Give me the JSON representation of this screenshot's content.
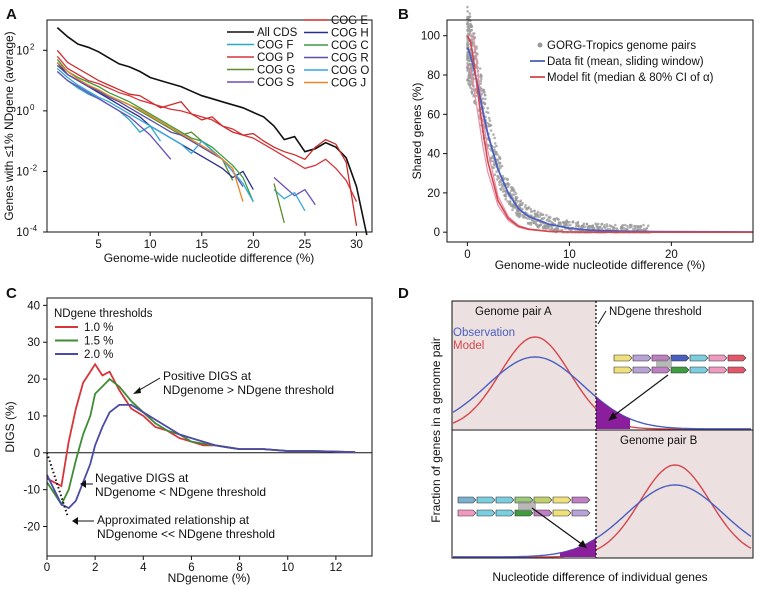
{
  "colors": {
    "all": "#111111",
    "F": "#2aa9c2",
    "P": "#d6353a",
    "G": "#5a8f2c",
    "S": "#6b4fb7",
    "E": "#cf2b2b",
    "H": "#2b2f8c",
    "C": "#3f9c40",
    "R": "#5b4fa6",
    "O": "#35a8dc",
    "J": "#e8862a",
    "gray": "#9a9a9a",
    "obs": "#4a5fbf",
    "model": "#d6474d",
    "shade": "#ece0e0",
    "purple": "#8b1e9c"
  },
  "chart_data": [
    {
      "panel": "A",
      "type": "line",
      "xlabel": "Genome-wide nucleotide difference (%)",
      "ylabel": "Genes with ≤1% NDgene (average)",
      "xlim": [
        0,
        31.5
      ],
      "ylim_log10": [
        -4,
        3
      ],
      "xticks": [
        5,
        10,
        15,
        20,
        25,
        30
      ],
      "yticks": [
        {
          "label": "10",
          "exp": "2",
          "log": 2
        },
        {
          "label": "10",
          "exp": "0",
          "log": 0
        },
        {
          "label": "10",
          "exp": "-2",
          "log": -2
        },
        {
          "label": "10",
          "exp": "-4",
          "log": -4
        }
      ],
      "series": [
        {
          "name": "All CDS",
          "key": "all",
          "x": [
            1,
            2,
            3,
            4,
            5,
            6,
            7,
            8,
            9,
            10,
            11,
            12,
            13,
            14,
            15,
            16,
            17,
            18,
            19,
            20,
            21,
            22,
            23,
            24,
            25,
            26,
            27,
            28,
            29,
            30,
            31
          ],
          "logy": [
            2.75,
            2.45,
            2.2,
            2.1,
            1.95,
            1.75,
            1.55,
            1.45,
            1.3,
            1.1,
            1.0,
            0.9,
            0.8,
            0.65,
            0.5,
            0.4,
            0.3,
            0.2,
            0.1,
            -0.05,
            -0.2,
            -0.5,
            -0.95,
            -0.85,
            -1.35,
            -1.25,
            -1.05,
            -1.2,
            -1.55,
            -2.5,
            -4.1
          ]
        },
        {
          "name": "COG F",
          "key": "F",
          "x": [
            1,
            2,
            3,
            4,
            5,
            6,
            7,
            8,
            9,
            10,
            11
          ],
          "logy": [
            1.3,
            1.0,
            0.75,
            0.55,
            0.4,
            0.2,
            0.0,
            -0.3,
            -0.7,
            -0.5,
            -1.0
          ]
        },
        {
          "name": "COG P",
          "key": "P",
          "x": [
            1,
            2,
            3,
            4,
            5,
            6,
            7,
            8,
            9,
            10,
            11,
            12,
            13,
            14,
            15,
            16,
            17,
            18,
            19,
            20,
            21,
            22,
            23,
            24,
            25,
            26,
            27,
            28,
            29,
            30
          ],
          "logy": [
            1.8,
            1.4,
            1.2,
            1.0,
            0.9,
            0.75,
            0.6,
            0.5,
            0.35,
            0.25,
            0.15,
            0.05,
            0.0,
            -0.1,
            -0.2,
            -0.3,
            -0.5,
            -0.6,
            -0.8,
            -0.9,
            -1.1,
            -1.3,
            -1.5,
            -1.7,
            -1.9,
            -1.8,
            -1.6,
            -1.9,
            -2.3,
            -3.0
          ]
        },
        {
          "name": "COG G",
          "key": "G",
          "x": [
            1,
            2,
            3,
            4,
            5,
            6,
            7,
            8,
            9,
            10,
            11,
            12,
            13,
            14,
            15,
            16,
            17,
            18
          ],
          "logy": [
            1.5,
            1.2,
            1.0,
            0.85,
            0.65,
            0.5,
            0.35,
            0.2,
            0.0,
            -0.2,
            -0.4,
            -0.6,
            -0.8,
            -0.7,
            -1.0,
            -1.3,
            -1.6,
            -2.3
          ]
        },
        {
          "name": "COG S",
          "key": "S",
          "x": [
            1,
            2,
            3,
            4,
            5,
            6,
            7,
            8,
            9,
            10,
            11,
            12
          ],
          "logy": [
            1.3,
            1.0,
            0.8,
            0.6,
            0.4,
            0.2,
            0.0,
            -0.2,
            -0.5,
            -0.8,
            -1.2,
            -1.6
          ]
        },
        {
          "name": "COG E",
          "key": "E",
          "x": [
            1,
            2,
            3,
            4,
            5,
            6,
            7,
            8,
            9,
            10,
            11,
            12,
            13,
            14,
            15,
            16,
            17,
            18,
            19,
            20,
            21,
            22,
            23,
            24,
            25,
            26,
            27,
            28,
            29,
            30
          ],
          "logy": [
            2.0,
            1.6,
            1.4,
            1.2,
            1.0,
            0.85,
            0.7,
            0.55,
            0.5,
            0.3,
            0.1,
            0.2,
            0.3,
            -0.1,
            -0.3,
            -0.2,
            -0.5,
            -0.7,
            -0.8,
            -0.75,
            -1.0,
            -1.2,
            -1.35,
            -1.45,
            -1.6,
            -1.2,
            -0.95,
            -1.1,
            -1.7,
            -3.8
          ]
        },
        {
          "name": "COG H",
          "key": "H",
          "x": [
            1,
            2,
            3,
            4,
            5,
            6,
            7,
            8,
            9,
            10,
            11,
            12,
            13,
            14,
            15,
            16,
            17,
            18,
            19,
            20
          ],
          "logy": [
            1.6,
            1.2,
            1.0,
            0.8,
            0.6,
            0.4,
            0.2,
            0.0,
            -0.2,
            -0.5,
            -0.7,
            -0.9,
            -1.1,
            -1.3,
            -1.5,
            -1.7,
            -1.9,
            -2.2,
            -2.0,
            -2.6
          ]
        },
        {
          "name": "COG C",
          "key": "C",
          "x": [
            1,
            2,
            3,
            4,
            5,
            6,
            7,
            8,
            9,
            10,
            11,
            12,
            13,
            14,
            15,
            16,
            17,
            18,
            19,
            20
          ],
          "logy": [
            1.7,
            1.3,
            1.1,
            0.95,
            0.8,
            0.6,
            0.45,
            0.3,
            0.1,
            -0.1,
            -0.3,
            -0.5,
            -0.7,
            -0.9,
            -1.0,
            -1.2,
            -1.5,
            -1.8,
            -2.2,
            -3.0
          ]
        },
        {
          "name": "COG R",
          "key": "R",
          "x": [
            1,
            2,
            3,
            4,
            5,
            6,
            7,
            8,
            9,
            10,
            11,
            12,
            13,
            14,
            15,
            16,
            17,
            18,
            19
          ],
          "logy": [
            1.5,
            1.2,
            1.0,
            0.8,
            0.65,
            0.45,
            0.3,
            0.1,
            -0.1,
            -0.3,
            -0.5,
            -0.7,
            -0.8,
            -1.0,
            -1.2,
            -1.4,
            -1.6,
            -2.0,
            -2.5
          ]
        },
        {
          "name": "COG O",
          "key": "O",
          "x": [
            1,
            2,
            3,
            4,
            5,
            6,
            7,
            8,
            9,
            10,
            11,
            12,
            13,
            14,
            15,
            16,
            17,
            18,
            19,
            20
          ],
          "logy": [
            1.4,
            1.1,
            0.85,
            0.65,
            0.45,
            0.3,
            0.1,
            -0.1,
            -0.3,
            -0.5,
            -0.7,
            -0.9,
            -1.1,
            -1.4,
            -1.0,
            -1.3,
            -1.6,
            -2.0,
            -2.4,
            -3.0
          ]
        },
        {
          "name": "COG J",
          "key": "J",
          "x": [
            1,
            2,
            3,
            4,
            5,
            6,
            7,
            8,
            9,
            10,
            11,
            12,
            13,
            14,
            15,
            16,
            17,
            18,
            19
          ],
          "logy": [
            1.6,
            1.3,
            1.05,
            0.85,
            0.7,
            0.5,
            0.35,
            0.2,
            0.05,
            -0.15,
            -0.35,
            -0.55,
            -0.75,
            -0.95,
            -1.15,
            -1.35,
            -1.6,
            -1.9,
            -3.0
          ]
        },
        {
          "name": "",
          "key": "S",
          "x": [
            22,
            23,
            24,
            25,
            26
          ],
          "logy": [
            -2.2,
            -2.5,
            -2.8,
            -2.6,
            -3.1
          ]
        },
        {
          "name": "",
          "key": "O",
          "x": [
            22,
            23,
            24,
            25
          ],
          "logy": [
            -2.6,
            -2.9,
            -2.7,
            -3.3
          ]
        },
        {
          "name": "",
          "key": "G",
          "x": [
            22,
            23
          ],
          "logy": [
            -2.4,
            -3.7
          ]
        }
      ]
    },
    {
      "panel": "B",
      "type": "scatter",
      "xlabel": "Genome-wide nucleotide difference (%)",
      "ylabel": "Shared genes (%)",
      "xlim": [
        -2,
        28
      ],
      "ylim": [
        -5,
        108
      ],
      "xticks": [
        0,
        10,
        20
      ],
      "yticks": [
        0,
        20,
        40,
        60,
        80,
        100
      ],
      "legend": [
        "GORG-Tropics genome pairs",
        "Data fit (mean, sliding window)",
        "Model fit (median & 80% CI of α)"
      ],
      "data_fit": {
        "x": [
          0,
          0.3,
          0.6,
          1,
          1.5,
          2,
          3,
          4,
          5,
          6,
          8,
          10,
          12,
          15,
          18,
          22,
          28
        ],
        "y": [
          94,
          90,
          84,
          75,
          62,
          50,
          32,
          20,
          12,
          8,
          4,
          2,
          1,
          0.5,
          0.3,
          0.2,
          0.1
        ]
      },
      "model_fit": {
        "x": [
          0,
          0.3,
          0.6,
          1,
          1.5,
          2,
          3,
          4,
          5,
          6,
          8,
          10,
          12,
          15,
          18,
          22,
          28
        ],
        "y": [
          100,
          97,
          88,
          72,
          52,
          36,
          16,
          7,
          3,
          1.5,
          0.4,
          0.1,
          0,
          0,
          0,
          0,
          0
        ]
      }
    },
    {
      "panel": "C",
      "type": "line",
      "xlabel": "NDgenome (%)",
      "ylabel": "DIGS  (%)",
      "xlim": [
        0,
        13.5
      ],
      "ylim": [
        -28,
        42
      ],
      "xticks": [
        0,
        2,
        4,
        6,
        8,
        10,
        12
      ],
      "yticks": [
        -20,
        -10,
        0,
        10,
        20,
        30,
        40
      ],
      "legend_title": "NDgene thresholds",
      "series": [
        {
          "name": "1.0 %",
          "color": "#d6353a",
          "x": [
            0,
            0.3,
            0.6,
            0.9,
            1.2,
            1.5,
            1.8,
            2.0,
            2.3,
            2.6,
            3.0,
            3.5,
            4,
            4.5,
            5,
            5.5,
            6,
            6.5,
            7,
            7.5,
            8,
            9,
            10,
            11,
            12,
            12.8
          ],
          "y": [
            -7,
            -8,
            -9,
            3,
            12,
            19,
            22,
            24,
            21,
            22,
            17,
            12,
            10,
            7,
            6,
            4,
            3,
            2,
            2,
            1.5,
            1,
            1,
            0.5,
            0.5,
            0.3,
            0.2
          ]
        },
        {
          "name": "1.5 %",
          "color": "#3f8c34",
          "x": [
            0,
            0.3,
            0.6,
            0.9,
            1.2,
            1.5,
            1.8,
            2.0,
            2.3,
            2.6,
            3.0,
            3.5,
            4,
            4.5,
            5,
            5.5,
            6,
            6.5,
            7,
            7.5,
            8,
            9,
            10,
            11,
            12,
            12.8
          ],
          "y": [
            -8,
            -11,
            -14,
            -10,
            -2,
            5,
            10,
            16,
            18,
            20,
            18,
            14,
            11,
            8,
            6,
            5,
            3,
            2.5,
            2,
            1.5,
            1,
            1,
            0.5,
            0.5,
            0.3,
            0.2
          ]
        },
        {
          "name": "2.0 %",
          "color": "#4c4aa8",
          "x": [
            0,
            0.3,
            0.6,
            0.9,
            1.2,
            1.5,
            1.8,
            2.0,
            2.3,
            2.6,
            3.0,
            3.5,
            4,
            4.5,
            5,
            5.5,
            6,
            6.5,
            7,
            7.5,
            8,
            9,
            10,
            11,
            12,
            12.8
          ],
          "y": [
            -6,
            -10,
            -14,
            -15,
            -13,
            -8,
            -3,
            2,
            7,
            11,
            13,
            13,
            11,
            9,
            7,
            5,
            4,
            3,
            2,
            1.5,
            1,
            1,
            0.5,
            0.5,
            0.3,
            0.2
          ]
        }
      ],
      "approx": {
        "x": [
          0,
          0.85
        ],
        "y": [
          0,
          -17
        ]
      }
    }
  ],
  "panels": {
    "a": {
      "letter": "A",
      "legend_left": [
        "All CDS",
        "COG F",
        "COG P",
        "COG G",
        "COG S"
      ],
      "legend_right": [
        "COG E",
        "COG H",
        "COG C",
        "COG R",
        "COG O",
        "COG J"
      ]
    },
    "b": {
      "letter": "B"
    },
    "c": {
      "letter": "C",
      "ann1": "Positive DIGS at",
      "ann1b": "NDgenome > NDgene threshold",
      "ann2": "Negative DIGS at",
      "ann2b": "NDgenome < NDgene threshold",
      "ann3": "Approximated relationship at",
      "ann3b": "NDgenome << NDgene threshold"
    },
    "d": {
      "letter": "D",
      "pair_a": "Genome pair A",
      "pair_b": "Genome pair B",
      "threshold": "NDgene threshold",
      "obs": "Observation",
      "model": "Model",
      "ylabel": "Fraction of genes in a genome pair",
      "xlabel": "Nucleotide difference of individual genes"
    }
  }
}
